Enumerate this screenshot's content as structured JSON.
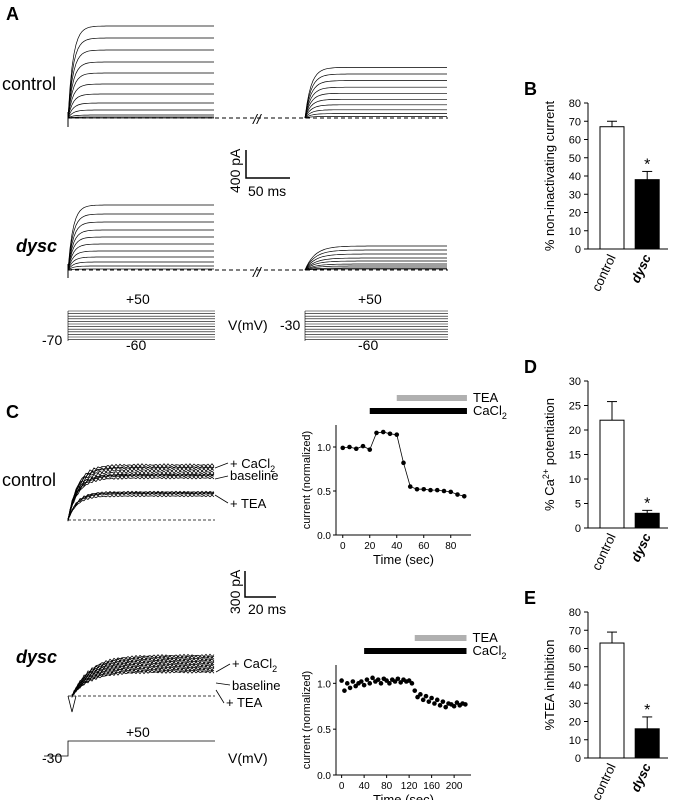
{
  "panels": {
    "A": {
      "letter": "A",
      "row_labels": [
        "control",
        "dysc"
      ],
      "scale_bar": {
        "y": "400 pA",
        "x": "50 ms"
      },
      "protocols": [
        {
          "hold": "-70",
          "top": "+50",
          "bottom": "-60"
        },
        {
          "hold": "-30",
          "top": "+50",
          "bottom": "-60"
        }
      ],
      "vm_label": "V(mV)",
      "break_mark": "//"
    },
    "C": {
      "letter": "C",
      "row_labels": [
        "control",
        "dysc"
      ],
      "trace_labels": [
        "+ CaCl",
        "baseline",
        "+ TEA"
      ],
      "sub": "2",
      "scale_bar": {
        "y": "300 pA",
        "x": "20 ms"
      },
      "protocol": {
        "hold": "-30",
        "top": "+50"
      },
      "vm_label": "V(mV)"
    }
  },
  "chart_data": [
    {
      "id": "B",
      "type": "bar",
      "letter": "B",
      "categories": [
        "control",
        "dysc"
      ],
      "values": [
        67,
        38
      ],
      "errors": [
        3,
        4.5
      ],
      "significance": [
        "",
        "*"
      ],
      "ylabel": "% non-inactivating current",
      "ylim": [
        0,
        80
      ],
      "yticks": [
        0,
        10,
        20,
        30,
        40,
        50,
        60,
        70,
        80
      ],
      "colors": [
        "#ffffff",
        "#000000"
      ]
    },
    {
      "id": "D",
      "type": "bar",
      "letter": "D",
      "categories": [
        "control",
        "dysc"
      ],
      "values": [
        22,
        3
      ],
      "errors": [
        3.8,
        0.6
      ],
      "significance": [
        "",
        "*"
      ],
      "ylabel_parts": [
        "% Ca",
        "2+",
        " potentiation"
      ],
      "ylim": [
        0,
        30
      ],
      "yticks": [
        0,
        5,
        10,
        15,
        20,
        25,
        30
      ],
      "colors": [
        "#ffffff",
        "#000000"
      ]
    },
    {
      "id": "E",
      "type": "bar",
      "letter": "E",
      "categories": [
        "control",
        "dysc"
      ],
      "values": [
        63,
        16
      ],
      "errors": [
        6,
        6.5
      ],
      "significance": [
        "",
        "*"
      ],
      "ylabel": "%TEA inhibition",
      "ylim": [
        0,
        80
      ],
      "yticks": [
        0,
        10,
        20,
        30,
        40,
        50,
        60,
        70,
        80
      ],
      "colors": [
        "#ffffff",
        "#000000"
      ]
    },
    {
      "id": "C1",
      "type": "scatter",
      "xlabel": "Time (sec)",
      "ylabel": "current (normalized)",
      "xlim": [
        -5,
        95
      ],
      "ylim": [
        0,
        1.25
      ],
      "xticks": [
        0,
        20,
        40,
        60,
        80
      ],
      "yticks": [
        0.0,
        0.5,
        1.0
      ],
      "x": [
        0,
        5,
        10,
        15,
        20,
        25,
        30,
        35,
        40,
        45,
        50,
        55,
        60,
        65,
        70,
        75,
        80,
        85,
        90
      ],
      "y": [
        0.99,
        1.0,
        0.98,
        1.01,
        0.97,
        1.16,
        1.17,
        1.15,
        1.14,
        0.82,
        0.55,
        0.52,
        0.52,
        0.51,
        0.51,
        0.5,
        0.49,
        0.46,
        0.44
      ],
      "bars": [
        {
          "name": "TEA",
          "start": 40,
          "end": 92,
          "color": "#b0b0b0"
        },
        {
          "name": "CaCl",
          "sub": "2",
          "start": 20,
          "end": 92,
          "color": "#000000"
        }
      ]
    },
    {
      "id": "C2",
      "type": "scatter",
      "xlabel": "Time (sec)",
      "ylabel": "current (normalized)",
      "xlim": [
        -10,
        230
      ],
      "ylim": [
        0,
        1.2
      ],
      "xticks": [
        0,
        40,
        80,
        120,
        160,
        200
      ],
      "yticks": [
        0.0,
        0.5,
        1.0
      ],
      "x": [
        0,
        5,
        10,
        15,
        20,
        25,
        30,
        35,
        40,
        45,
        50,
        55,
        60,
        65,
        70,
        75,
        80,
        85,
        90,
        95,
        100,
        105,
        110,
        115,
        120,
        125,
        130,
        135,
        140,
        145,
        150,
        155,
        160,
        165,
        170,
        175,
        180,
        185,
        190,
        195,
        200,
        205,
        210,
        215,
        220
      ],
      "y": [
        1.03,
        0.92,
        1.0,
        0.95,
        1.02,
        0.97,
        1.0,
        1.02,
        0.98,
        1.04,
        1.0,
        1.06,
        1.02,
        1.04,
        1.0,
        1.05,
        1.03,
        1.0,
        1.04,
        1.02,
        1.05,
        1.01,
        1.04,
        1.02,
        1.03,
        1.0,
        0.92,
        0.85,
        0.88,
        0.82,
        0.86,
        0.8,
        0.84,
        0.78,
        0.82,
        0.76,
        0.8,
        0.74,
        0.78,
        0.77,
        0.75,
        0.79,
        0.76,
        0.78,
        0.77
      ],
      "bars": [
        {
          "name": "TEA",
          "start": 130,
          "end": 222,
          "color": "#b0b0b0"
        },
        {
          "name": "CaCl",
          "sub": "2",
          "start": 40,
          "end": 222,
          "color": "#000000"
        }
      ]
    }
  ]
}
